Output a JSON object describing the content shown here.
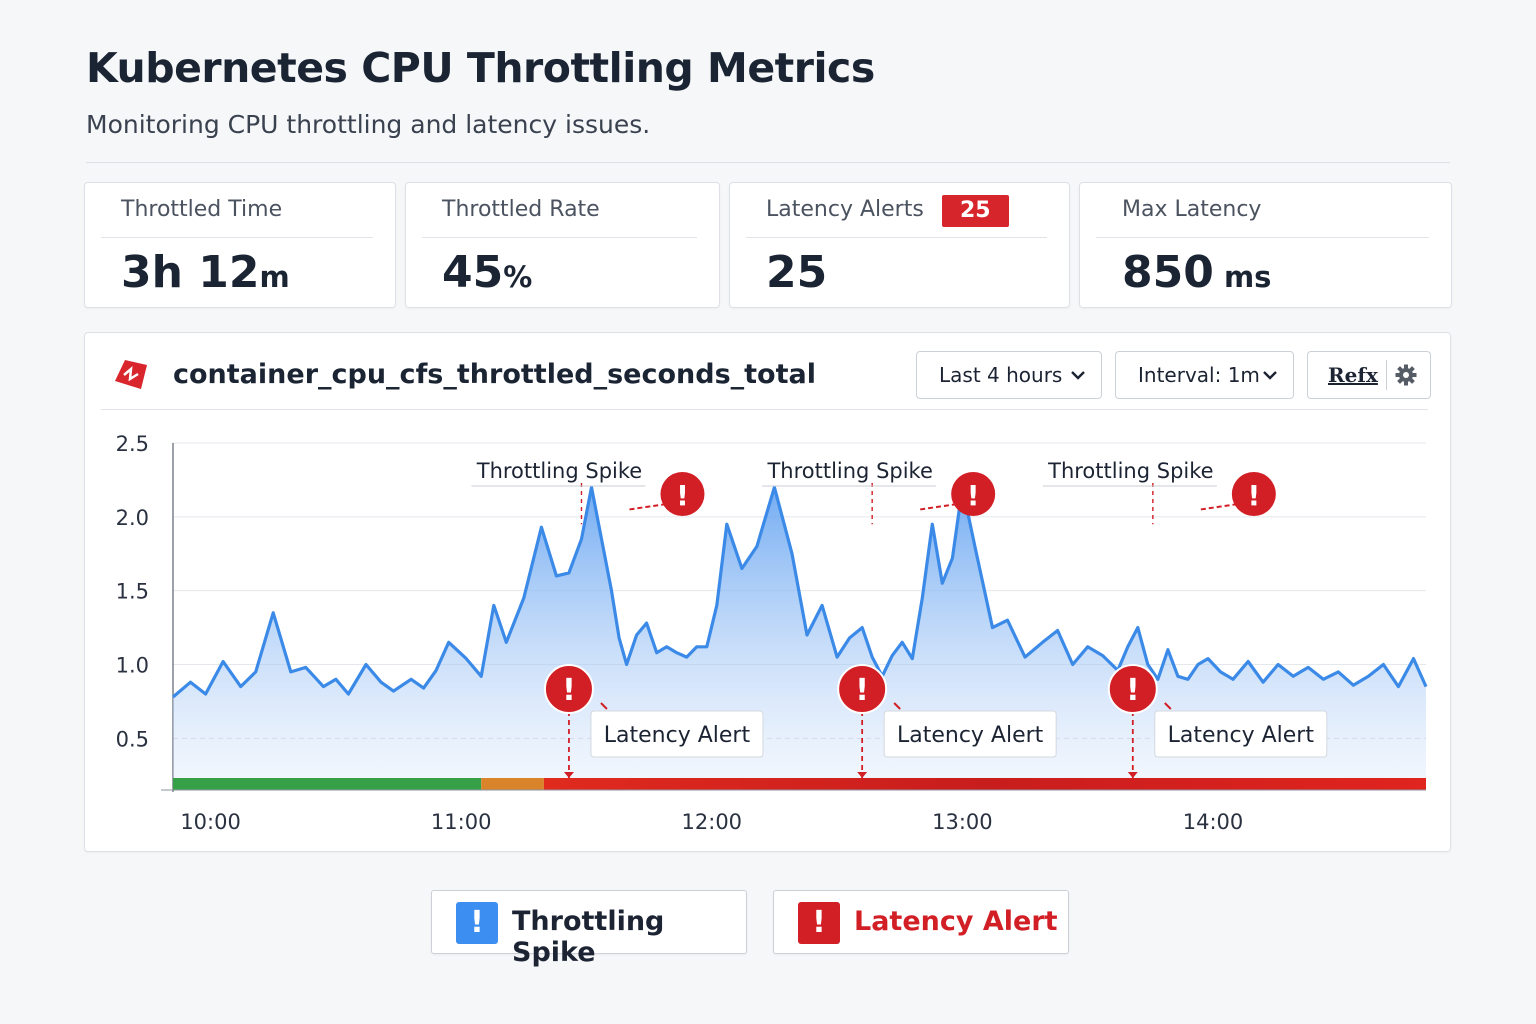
{
  "header": {
    "title": "Kubernetes CPU Throttling Metrics",
    "subtitle": "Monitoring CPU throttling and latency issues."
  },
  "kpis": [
    {
      "label": "Throttled Time",
      "value": "3h 12",
      "unit": "m"
    },
    {
      "label": "Throttled Rate",
      "value": "45",
      "unit": "%"
    },
    {
      "label": "Latency Alerts",
      "value": "25",
      "unit": "",
      "badge": "25"
    },
    {
      "label": "Max Latency",
      "value": "850",
      "unit": " ms"
    }
  ],
  "panel": {
    "metric_name": "container_cpu_cfs_throttled_seconds_total",
    "time_range": "Last 4 hours",
    "interval": "Interval: 1m",
    "refresh_label": "Refx"
  },
  "legend": {
    "throttling_label": "Throttling Spike",
    "latency_label": "Latency Alert"
  },
  "colors": {
    "line": "#3b8ae8",
    "fill_top": "#5a9df0",
    "alert_red": "#d21f26",
    "healthy_green": "#35a047",
    "warning_orange": "#d9842a",
    "spike_blue": "#3c8ef0"
  },
  "icons": {
    "metric": "prometheus-icon",
    "settings": "gear-icon",
    "alert": "alert-exclamation-icon",
    "dropdown": "chevron-down-icon"
  },
  "chart_data": {
    "type": "area",
    "y_ticks": [
      "2.5",
      "2.0",
      "1.5",
      "1.0",
      "0.5"
    ],
    "y_tick_values": [
      2.5,
      2.0,
      1.5,
      1.0,
      0.5
    ],
    "ylim": [
      0.15,
      2.5
    ],
    "x_ticks": [
      "10:00",
      "11:00",
      "12:00",
      "13:00",
      "14:00"
    ],
    "x_tick_values": [
      10.0,
      11.0,
      12.0,
      13.0,
      14.0
    ],
    "xlim": [
      9.85,
      14.85
    ],
    "grid": true,
    "series": [
      {
        "x": [
          9.85,
          9.92,
          9.98,
          10.05,
          10.12,
          10.18,
          10.25,
          10.32,
          10.38,
          10.45,
          10.5,
          10.55,
          10.62,
          10.68,
          10.73,
          10.8,
          10.85,
          10.9,
          10.95,
          11.02,
          11.08,
          11.13,
          11.18,
          11.25,
          11.32,
          11.38,
          11.43,
          11.48,
          11.52,
          11.56,
          11.6,
          11.63,
          11.66,
          11.7,
          11.74,
          11.78,
          11.82,
          11.86,
          11.9,
          11.94,
          11.98,
          12.02,
          12.06,
          12.12,
          12.18,
          12.25,
          12.32,
          12.38,
          12.44,
          12.5,
          12.55,
          12.6,
          12.64,
          12.68,
          12.72,
          12.76,
          12.8,
          12.84,
          12.88,
          12.92,
          12.96,
          13.0,
          13.05,
          13.12,
          13.18,
          13.25,
          13.32,
          13.38,
          13.44,
          13.5,
          13.56,
          13.62,
          13.66,
          13.7,
          13.74,
          13.78,
          13.82,
          13.86,
          13.9,
          13.94,
          13.98,
          14.03,
          14.08,
          14.14,
          14.2,
          14.26,
          14.32,
          14.38,
          14.44,
          14.5,
          14.56,
          14.62,
          14.68,
          14.74,
          14.8,
          14.85
        ],
        "y": [
          0.78,
          0.88,
          0.8,
          1.02,
          0.85,
          0.95,
          1.35,
          0.95,
          0.98,
          0.85,
          0.9,
          0.8,
          1.0,
          0.88,
          0.82,
          0.9,
          0.84,
          0.96,
          1.15,
          1.04,
          0.92,
          1.4,
          1.15,
          1.45,
          1.93,
          1.6,
          1.62,
          1.85,
          2.2,
          1.85,
          1.5,
          1.18,
          1.0,
          1.2,
          1.28,
          1.08,
          1.12,
          1.08,
          1.05,
          1.12,
          1.12,
          1.4,
          1.95,
          1.65,
          1.8,
          2.2,
          1.75,
          1.2,
          1.4,
          1.05,
          1.18,
          1.25,
          1.05,
          0.92,
          1.06,
          1.15,
          1.04,
          1.45,
          1.95,
          1.55,
          1.72,
          2.2,
          1.8,
          1.25,
          1.3,
          1.05,
          1.15,
          1.23,
          1.0,
          1.12,
          1.06,
          0.96,
          1.12,
          1.25,
          1.0,
          0.9,
          1.1,
          0.92,
          0.9,
          1.0,
          1.04,
          0.95,
          0.9,
          1.02,
          0.88,
          1.0,
          0.92,
          0.98,
          0.9,
          0.95,
          0.86,
          0.92,
          1.0,
          0.85,
          1.04,
          0.85
        ],
        "color": "#3b8ae8"
      }
    ],
    "annotations": {
      "spike_label": "Throttling Spike",
      "spike_times": [
        11.48,
        12.64,
        13.76
      ],
      "alert_label": "Latency Alert",
      "alert_times": [
        11.43,
        12.6,
        13.68
      ]
    },
    "status_bar": [
      {
        "from": 9.85,
        "to": 11.08,
        "state": "healthy"
      },
      {
        "from": 11.08,
        "to": 11.33,
        "state": "warning"
      },
      {
        "from": 11.33,
        "to": 14.85,
        "state": "critical"
      }
    ]
  }
}
